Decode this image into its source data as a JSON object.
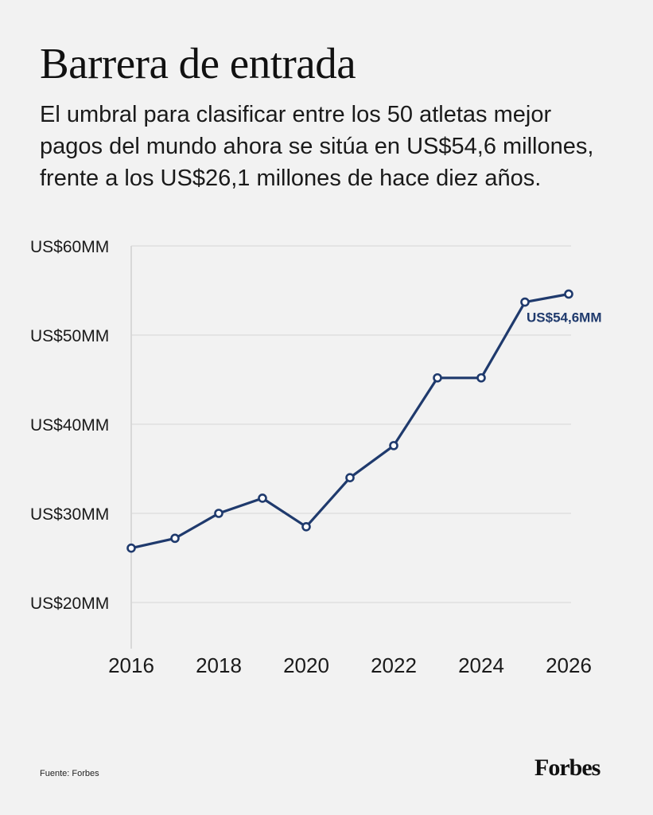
{
  "title": "Barrera de entrada",
  "subtitle": "El umbral para clasificar entre los 50 atletas mejor pagos del mundo ahora se sitúa en US$54,6 millones, frente a los US$26,1 millones de hace diez años.",
  "source": "Fuente: Forbes",
  "brand": "Forbes",
  "chart_data": {
    "type": "line",
    "title": "",
    "xlabel": "",
    "ylabel": "",
    "x": [
      2016,
      2017,
      2018,
      2019,
      2020,
      2021,
      2022,
      2023,
      2024,
      2025,
      2026
    ],
    "series": [
      {
        "values": [
          26.1,
          27.2,
          30.0,
          31.7,
          28.5,
          34.0,
          37.6,
          45.2,
          45.2,
          53.7,
          54.6
        ],
        "color": "#1f3a6d"
      }
    ],
    "xlim": [
      2016,
      2026
    ],
    "ylim": [
      15,
      60
    ],
    "x_ticks": [
      "2016",
      "2018",
      "2020",
      "2022",
      "2024",
      "2026"
    ],
    "y_ticks": [
      "US$20MM",
      "US$30MM",
      "US$40MM",
      "US$50MM",
      "US$60MM"
    ],
    "y_tick_values": [
      20,
      30,
      40,
      50,
      60
    ],
    "end_label": "US$54,6MM",
    "grid": true,
    "legend": "none"
  }
}
